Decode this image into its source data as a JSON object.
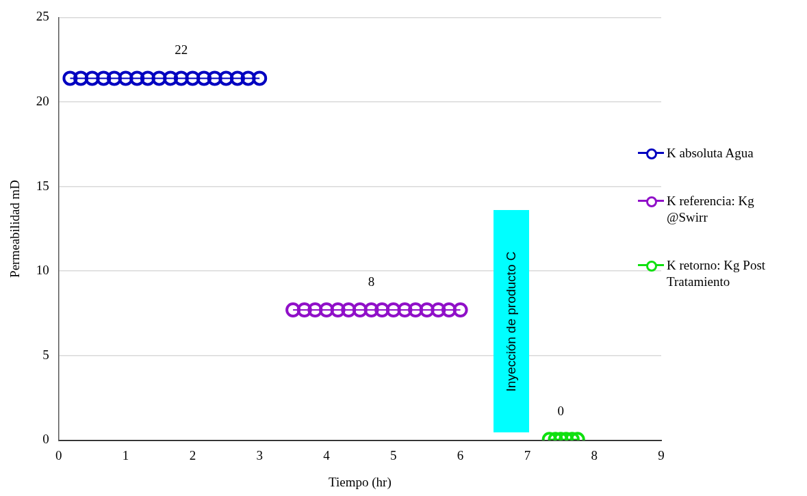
{
  "chart_data": {
    "type": "line",
    "xlabel": "Tiempo (hr)",
    "ylabel": "Permeabilidad mD",
    "xlim": [
      0,
      9
    ],
    "xticks": [
      0,
      1,
      2,
      3,
      4,
      5,
      6,
      7,
      8,
      9
    ],
    "ylim": [
      0,
      25
    ],
    "yticks": [
      0,
      5,
      10,
      15,
      20,
      25
    ],
    "grid": "y",
    "legend": "right",
    "marker": "circle",
    "line_style": "solid",
    "series": [
      {
        "name": "K absoluta Agua",
        "color": "#0000c0",
        "x": [
          0.17,
          0.33,
          0.5,
          0.67,
          0.83,
          1.0,
          1.17,
          1.33,
          1.5,
          1.67,
          1.83,
          2.0,
          2.17,
          2.33,
          2.5,
          2.67,
          2.83,
          3.0
        ],
        "values": [
          21.4,
          21.4,
          21.4,
          21.4,
          21.4,
          21.4,
          21.4,
          21.4,
          21.4,
          21.4,
          21.4,
          21.4,
          21.4,
          21.4,
          21.4,
          21.4,
          21.4,
          21.4
        ]
      },
      {
        "name": "K referencia: Kg @Swirr",
        "color": "#9010c8",
        "x": [
          3.5,
          3.67,
          3.83,
          4.0,
          4.17,
          4.33,
          4.5,
          4.67,
          4.83,
          5.0,
          5.17,
          5.33,
          5.5,
          5.67,
          5.83,
          6.0
        ],
        "values": [
          7.7,
          7.7,
          7.7,
          7.7,
          7.7,
          7.7,
          7.7,
          7.7,
          7.7,
          7.7,
          7.7,
          7.7,
          7.7,
          7.7,
          7.7,
          7.7
        ]
      },
      {
        "name": "K retorno: Kg Post Tratamiento",
        "color": "#10e010",
        "x": [
          7.33,
          7.42,
          7.5,
          7.58,
          7.67,
          7.75
        ],
        "values": [
          0.05,
          0.05,
          0.05,
          0.05,
          0.05,
          0.05
        ]
      }
    ],
    "annotations": [
      {
        "text": "22",
        "x": 1.83,
        "y": 21.4
      },
      {
        "text": "8",
        "x": 4.67,
        "y": 7.7
      },
      {
        "text": "0",
        "x": 7.5,
        "y": 0.05
      },
      "Inyección de producto C"
    ]
  }
}
